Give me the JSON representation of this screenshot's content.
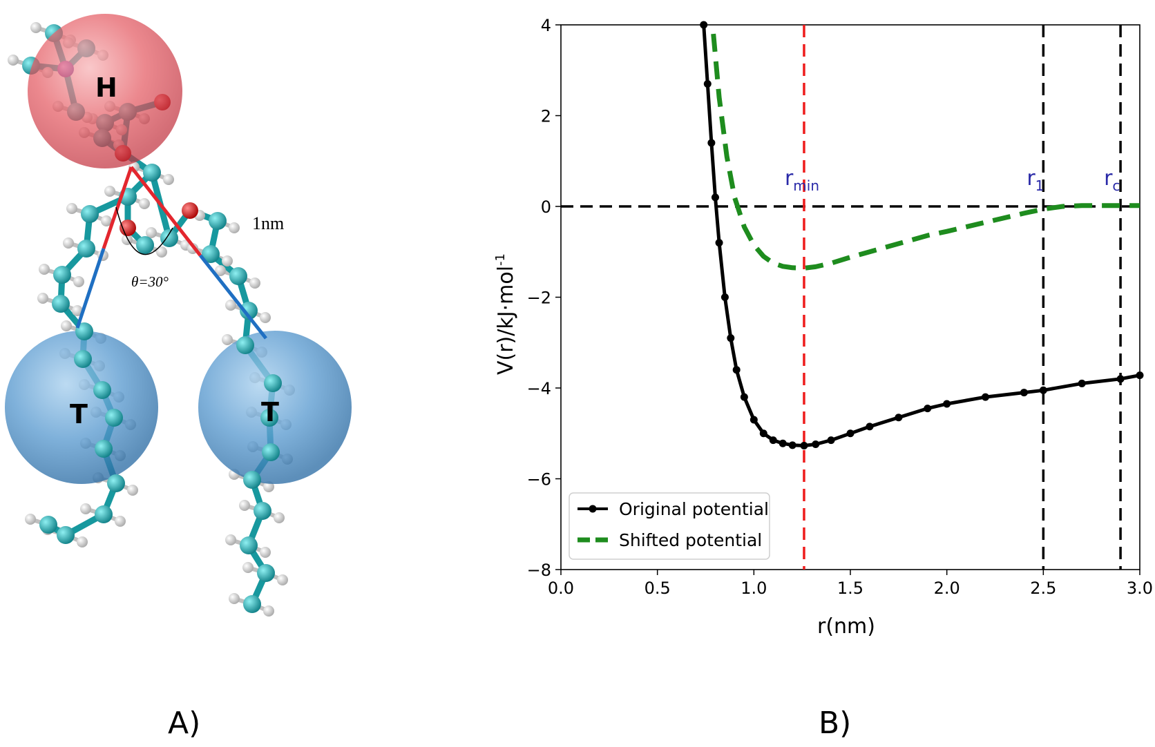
{
  "panel_a": {
    "label": "A)",
    "head_label": "H",
    "tail_labels": [
      "T",
      "T"
    ],
    "distance_label": "1nm",
    "angle_label": "θ=30°",
    "colors": {
      "head_bead": "#e0454f",
      "tail_bead": "#3d86c0",
      "bond_red": "#e3262e",
      "bond_blue": "#1f6fc2",
      "carbon": "#1aa3a8",
      "oxygen": "#d40000",
      "phosphorus": "#7a1fa2",
      "hydrogen": "#e8e8e8"
    }
  },
  "panel_b": {
    "label": "B)",
    "markers": [
      {
        "text": "r",
        "sub": "min",
        "x": 1.26
      },
      {
        "text": "r",
        "sub": "1",
        "x": 2.5
      },
      {
        "text": "r",
        "sub": "c",
        "x": 2.9
      }
    ]
  },
  "chart_data": {
    "type": "line",
    "xlabel": "r(nm)",
    "ylabel": "V(r)/kJ·mol",
    "ylabel_sup": "-1",
    "xlim": [
      0.0,
      3.0
    ],
    "ylim": [
      -8,
      4
    ],
    "xticks": [
      0.0,
      0.5,
      1.0,
      1.5,
      2.0,
      2.5,
      3.0
    ],
    "xtick_labels": [
      "0.0",
      "0.5",
      "1.0",
      "1.5",
      "2.0",
      "2.5",
      "3.0"
    ],
    "yticks": [
      -8,
      -6,
      -4,
      -2,
      0,
      2,
      4
    ],
    "ytick_labels": [
      "−8",
      "−6",
      "−4",
      "−2",
      "0",
      "2",
      "4"
    ],
    "grid": false,
    "legend_position": "bottom-left",
    "vlines": [
      {
        "x": 1.26,
        "color": "#ee1c1c"
      },
      {
        "x": 2.5,
        "color": "#000000"
      },
      {
        "x": 2.9,
        "color": "#000000"
      }
    ],
    "hlines": [
      {
        "y": 0,
        "color": "#000000"
      }
    ],
    "series": [
      {
        "name": "Original potential",
        "color": "#000000",
        "style": "solid-markers",
        "x": [
          0.74,
          0.76,
          0.78,
          0.8,
          0.82,
          0.85,
          0.88,
          0.91,
          0.95,
          1.0,
          1.05,
          1.1,
          1.15,
          1.2,
          1.26,
          1.32,
          1.4,
          1.5,
          1.6,
          1.75,
          1.9,
          2.0,
          2.2,
          2.4,
          2.5,
          2.7,
          2.9,
          3.0
        ],
        "y": [
          4.0,
          2.7,
          1.4,
          0.2,
          -0.8,
          -2.0,
          -2.9,
          -3.6,
          -4.2,
          -4.7,
          -5.0,
          -5.15,
          -5.22,
          -5.26,
          -5.27,
          -5.24,
          -5.15,
          -5.0,
          -4.85,
          -4.65,
          -4.45,
          -4.35,
          -4.2,
          -4.1,
          -4.05,
          -3.9,
          -3.8,
          -3.72
        ]
      },
      {
        "name": "Shifted potential",
        "color": "#1e8c1e",
        "style": "dashed",
        "x": [
          0.79,
          0.82,
          0.86,
          0.9,
          0.95,
          1.0,
          1.05,
          1.1,
          1.15,
          1.2,
          1.26,
          1.32,
          1.4,
          1.5,
          1.6,
          1.75,
          1.9,
          2.0,
          2.2,
          2.4,
          2.5,
          2.6,
          2.7,
          2.8,
          2.9,
          3.0
        ],
        "y": [
          3.8,
          2.4,
          1.1,
          0.2,
          -0.45,
          -0.85,
          -1.1,
          -1.25,
          -1.32,
          -1.35,
          -1.36,
          -1.33,
          -1.25,
          -1.12,
          -1.0,
          -0.82,
          -0.64,
          -0.55,
          -0.35,
          -0.15,
          -0.06,
          0.0,
          0.02,
          0.02,
          0.02,
          0.02
        ]
      }
    ]
  }
}
